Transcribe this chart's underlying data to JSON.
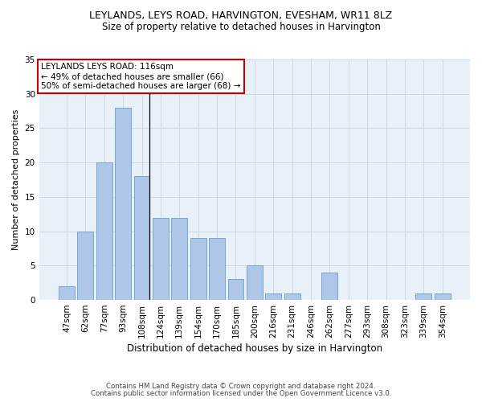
{
  "title": "LEYLANDS, LEYS ROAD, HARVINGTON, EVESHAM, WR11 8LZ",
  "subtitle": "Size of property relative to detached houses in Harvington",
  "xlabel": "Distribution of detached houses by size in Harvington",
  "ylabel": "Number of detached properties",
  "categories": [
    "47sqm",
    "62sqm",
    "77sqm",
    "93sqm",
    "108sqm",
    "124sqm",
    "139sqm",
    "154sqm",
    "170sqm",
    "185sqm",
    "200sqm",
    "216sqm",
    "231sqm",
    "246sqm",
    "262sqm",
    "277sqm",
    "293sqm",
    "308sqm",
    "323sqm",
    "339sqm",
    "354sqm"
  ],
  "values": [
    2,
    10,
    20,
    28,
    18,
    12,
    12,
    9,
    9,
    3,
    5,
    1,
    1,
    0,
    4,
    0,
    0,
    0,
    0,
    1,
    1
  ],
  "bar_color": "#aec6e8",
  "bar_edge_color": "#6a9fc8",
  "annotation_text": "LEYLANDS LEYS ROAD: 116sqm\n← 49% of detached houses are smaller (66)\n50% of semi-detached houses are larger (68) →",
  "annotation_box_color": "#ffffff",
  "annotation_border_color": "#cc0000",
  "ylim": [
    0,
    35
  ],
  "yticks": [
    0,
    5,
    10,
    15,
    20,
    25,
    30,
    35
  ],
  "grid_color": "#d0d8e8",
  "background_color": "#e8f0f8",
  "footer_line1": "Contains HM Land Registry data © Crown copyright and database right 2024.",
  "footer_line2": "Contains public sector information licensed under the Open Government Licence v3.0."
}
